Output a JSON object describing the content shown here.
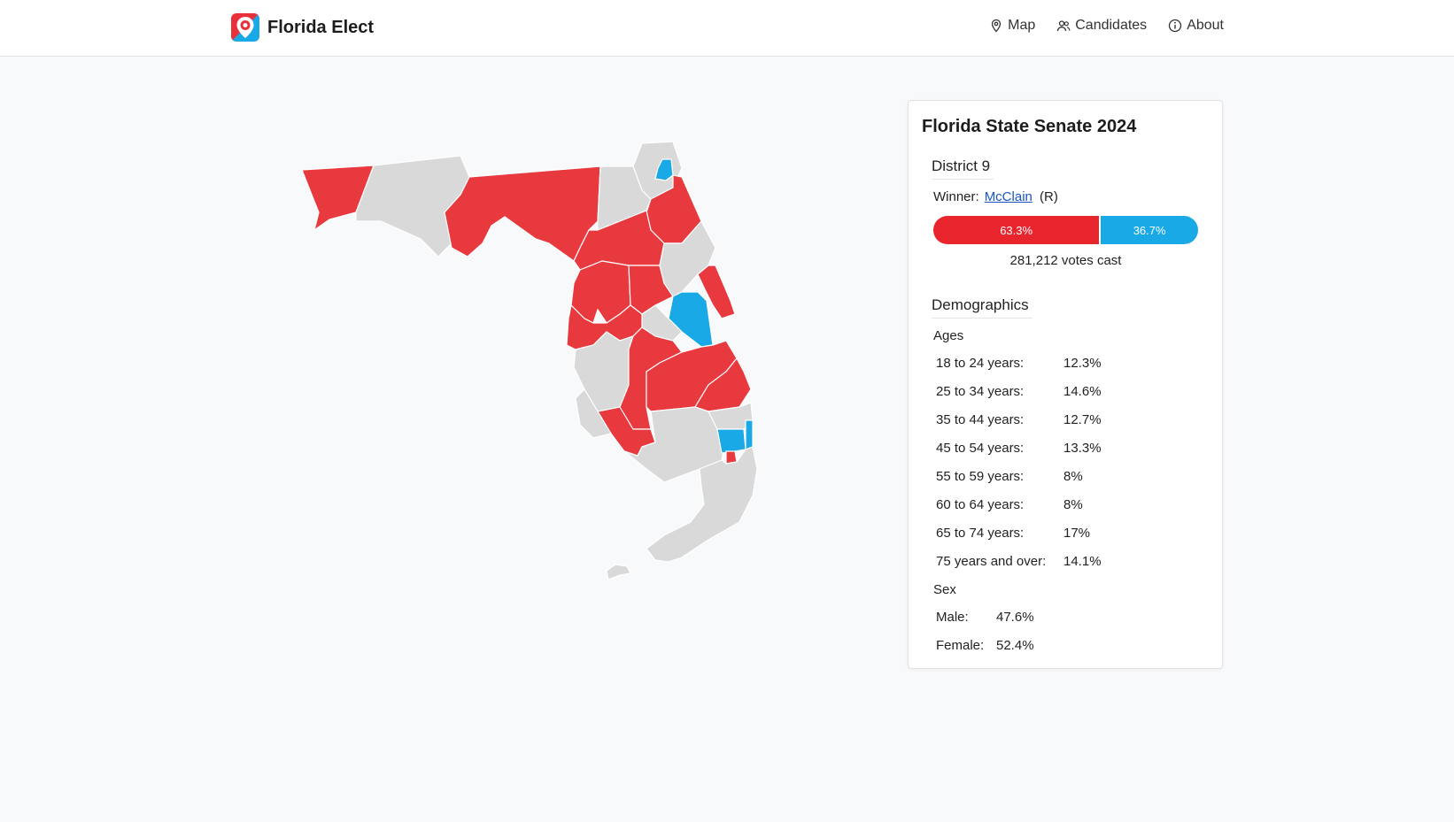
{
  "brand": {
    "name": "Florida Elect",
    "logo_icon": "map-pin-logo-icon"
  },
  "nav": {
    "items": [
      {
        "label": "Map",
        "icon": "map-pin-icon"
      },
      {
        "label": "Candidates",
        "icon": "users-icon"
      },
      {
        "label": "About",
        "icon": "info-icon"
      }
    ]
  },
  "colors": {
    "republican": "#e8393f",
    "democrat": "#19a9e6",
    "no_race": "#d9d9d9",
    "rep_bar": "#e8252d"
  },
  "panel": {
    "title": "Florida State Senate 2024",
    "district": "District 9",
    "winner_label": "Winner:",
    "winner_name": "McClain",
    "winner_party": "(R)",
    "rep_pct_label": "63.3%",
    "dem_pct_label": "36.7%",
    "rep_share": 0.633,
    "dem_share": 0.367,
    "votes_cast": "281,212 votes cast",
    "demographics_title": "Demographics",
    "ages_label": "Ages",
    "ages": [
      {
        "label": "18 to 24 years:",
        "value": "12.3%"
      },
      {
        "label": "25 to 34 years:",
        "value": "14.6%"
      },
      {
        "label": "35 to 44 years:",
        "value": "12.7%"
      },
      {
        "label": "45 to 54 years:",
        "value": "13.3%"
      },
      {
        "label": "55 to 59 years:",
        "value": "8%"
      },
      {
        "label": "60 to 64 years:",
        "value": "8%"
      },
      {
        "label": "65 to 74 years:",
        "value": "17%"
      },
      {
        "label": "75 years and over:",
        "value": "14.1%"
      }
    ],
    "sex_label": "Sex",
    "sex": [
      {
        "label": "Male:",
        "value": "47.6%"
      },
      {
        "label": "Female:",
        "value": "52.4%"
      }
    ]
  }
}
